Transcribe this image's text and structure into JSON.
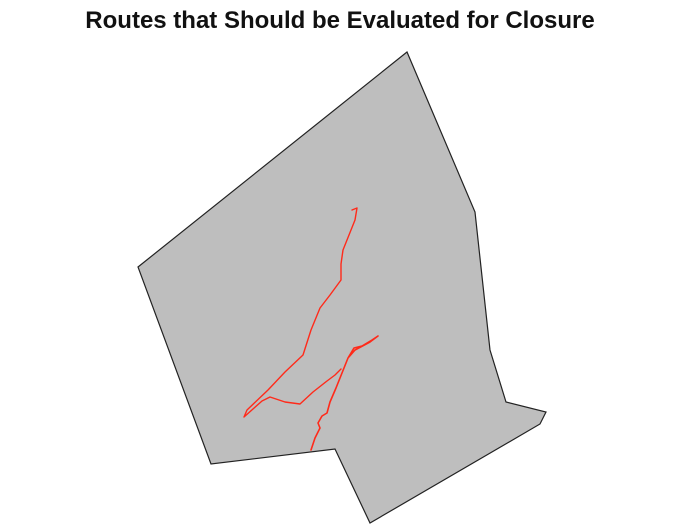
{
  "map": {
    "title": "Routes that Should be Evaluated for Closure",
    "colors": {
      "boundary_fill": "#bebebe",
      "boundary_stroke": "#222222",
      "route": "#ff2a1a",
      "background": "#ffffff"
    },
    "layers": [
      {
        "name": "study-area-boundary",
        "kind": "polygon"
      },
      {
        "name": "flagged-routes",
        "kind": "lines",
        "count": 2
      }
    ]
  }
}
